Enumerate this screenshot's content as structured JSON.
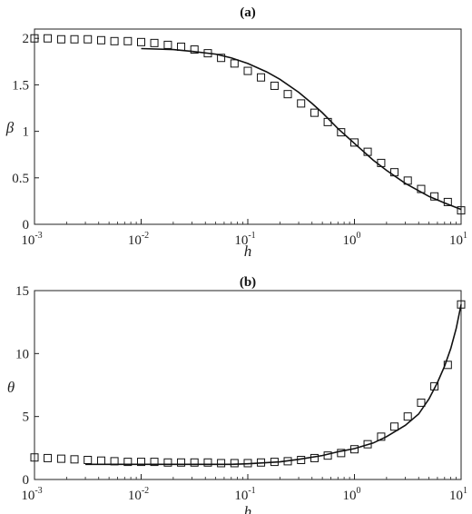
{
  "chart_data": [
    {
      "type": "line",
      "title": "(a)",
      "xlabel": "h",
      "ylabel": "β",
      "xscale": "log",
      "xlim": [
        0.001,
        10
      ],
      "ylim": [
        0,
        2.1
      ],
      "grid": false,
      "x_ticks": [
        {
          "base": "10",
          "exp": "-3"
        },
        {
          "base": "10",
          "exp": "-2"
        },
        {
          "base": "10",
          "exp": "-1"
        },
        {
          "base": "10",
          "exp": "0"
        },
        {
          "base": "10",
          "exp": "1"
        }
      ],
      "y_ticks": [
        "0",
        "0.5",
        "1",
        "1.5",
        "2"
      ],
      "series": [
        {
          "style": "line",
          "x": [
            0.01,
            0.02,
            0.03,
            0.05,
            0.07,
            0.1,
            0.15,
            0.2,
            0.3,
            0.4,
            0.5,
            0.7,
            1,
            1.5,
            2,
            3,
            5,
            7,
            10
          ],
          "y": [
            1.89,
            1.88,
            1.86,
            1.83,
            1.79,
            1.73,
            1.64,
            1.56,
            1.42,
            1.3,
            1.2,
            1.03,
            0.87,
            0.69,
            0.58,
            0.44,
            0.3,
            0.23,
            0.16
          ]
        },
        {
          "style": "square-marker",
          "x": [
            0.001,
            0.00133,
            0.00178,
            0.00237,
            0.00316,
            0.00422,
            0.00562,
            0.0075,
            0.01,
            0.0133,
            0.0178,
            0.0237,
            0.0316,
            0.0422,
            0.0562,
            0.075,
            0.1,
            0.133,
            0.178,
            0.237,
            0.316,
            0.422,
            0.562,
            0.75,
            1,
            1.33,
            1.78,
            2.37,
            3.16,
            4.22,
            5.62,
            7.5,
            10
          ],
          "y": [
            2.0,
            2.0,
            1.99,
            1.99,
            1.99,
            1.98,
            1.97,
            1.97,
            1.96,
            1.95,
            1.93,
            1.91,
            1.88,
            1.84,
            1.79,
            1.73,
            1.65,
            1.58,
            1.49,
            1.4,
            1.3,
            1.2,
            1.1,
            0.99,
            0.88,
            0.78,
            0.66,
            0.56,
            0.47,
            0.38,
            0.3,
            0.24,
            0.15
          ]
        }
      ]
    },
    {
      "type": "line",
      "title": "(b)",
      "xlabel": "h",
      "ylabel": "θ",
      "xscale": "log",
      "xlim": [
        0.001,
        10
      ],
      "ylim": [
        0,
        15
      ],
      "grid": false,
      "x_ticks": [
        {
          "base": "10",
          "exp": "-3"
        },
        {
          "base": "10",
          "exp": "-2"
        },
        {
          "base": "10",
          "exp": "-1"
        },
        {
          "base": "10",
          "exp": "0"
        },
        {
          "base": "10",
          "exp": "1"
        }
      ],
      "y_ticks": [
        "0",
        "5",
        "10",
        "15"
      ],
      "series": [
        {
          "style": "line",
          "x": [
            0.003,
            0.01,
            0.03,
            0.07,
            0.1,
            0.2,
            0.3,
            0.5,
            0.7,
            1,
            1.5,
            2,
            3,
            4,
            5,
            6,
            7,
            8,
            9,
            10
          ],
          "y": [
            1.2,
            1.2,
            1.2,
            1.2,
            1.25,
            1.4,
            1.6,
            1.9,
            2.2,
            2.45,
            2.9,
            3.4,
            4.3,
            5.2,
            6.4,
            7.7,
            9.0,
            10.4,
            12.0,
            13.9
          ]
        },
        {
          "style": "square-marker",
          "x": [
            0.001,
            0.00133,
            0.00178,
            0.00237,
            0.00316,
            0.00422,
            0.00562,
            0.0075,
            0.01,
            0.0133,
            0.0178,
            0.0237,
            0.0316,
            0.0422,
            0.0562,
            0.075,
            0.1,
            0.133,
            0.178,
            0.237,
            0.316,
            0.422,
            0.562,
            0.75,
            1,
            1.33,
            1.78,
            2.37,
            3.16,
            4.22,
            5.62,
            7.5,
            10
          ],
          "y": [
            1.75,
            1.7,
            1.65,
            1.6,
            1.55,
            1.5,
            1.45,
            1.4,
            1.4,
            1.4,
            1.35,
            1.35,
            1.35,
            1.35,
            1.3,
            1.3,
            1.3,
            1.35,
            1.4,
            1.45,
            1.55,
            1.7,
            1.9,
            2.1,
            2.4,
            2.8,
            3.4,
            4.2,
            5.0,
            6.1,
            7.4,
            9.1,
            13.9
          ]
        }
      ]
    }
  ]
}
